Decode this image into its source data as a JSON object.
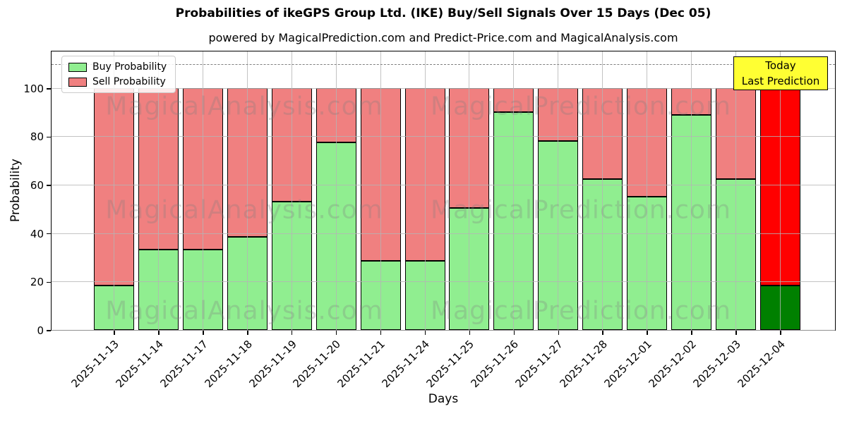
{
  "chart_data": {
    "type": "bar",
    "stacked": true,
    "title": "Probabilities of ikeGPS Group Ltd. (IKE) Buy/Sell Signals Over 15 Days (Dec 05)",
    "subtitle": "powered by MagicalPrediction.com and Predict-Price.com and MagicalAnalysis.com",
    "xlabel": "Days",
    "ylabel": "Probability",
    "ylim": [
      0,
      115.7
    ],
    "yticks": [
      0,
      20,
      40,
      60,
      80,
      100
    ],
    "dashed_line_y": 110,
    "grid": true,
    "legend_position": "upper left",
    "categories": [
      "2025-11-13",
      "2025-11-14",
      "2025-11-17",
      "2025-11-18",
      "2025-11-19",
      "2025-11-20",
      "2025-11-21",
      "2025-11-24",
      "2025-11-25",
      "2025-11-26",
      "2025-11-27",
      "2025-11-28",
      "2025-12-01",
      "2025-12-02",
      "2025-12-03",
      "2025-12-04"
    ],
    "series": [
      {
        "name": "Buy Probability",
        "color": "#90ee90",
        "values": [
          18.5,
          33.3,
          33.3,
          38.5,
          53.0,
          77.5,
          28.5,
          28.5,
          50.5,
          90.0,
          78.0,
          62.5,
          55.0,
          89.0,
          62.5,
          18.5
        ]
      },
      {
        "name": "Sell Probability",
        "color": "#f08080",
        "values": [
          81.5,
          66.7,
          66.7,
          61.5,
          47.0,
          22.5,
          71.5,
          71.5,
          49.5,
          10.0,
          22.0,
          37.5,
          45.0,
          11.0,
          37.5,
          81.5
        ]
      }
    ],
    "today_bar": {
      "index": 15,
      "buy_color": "#008000",
      "sell_color": "#ff0000"
    },
    "annotation": {
      "lines": [
        "Today",
        "Last Prediction"
      ],
      "bg": "#ffff33"
    },
    "watermarks": [
      "MagicalAnalysis.com",
      "MagicalPrediction.com"
    ],
    "colors": {
      "grid": "#b4b4b4",
      "dashed": "#7f7f7f",
      "edge": "#000000",
      "watermark": "rgba(125,125,125,0.28)"
    }
  }
}
